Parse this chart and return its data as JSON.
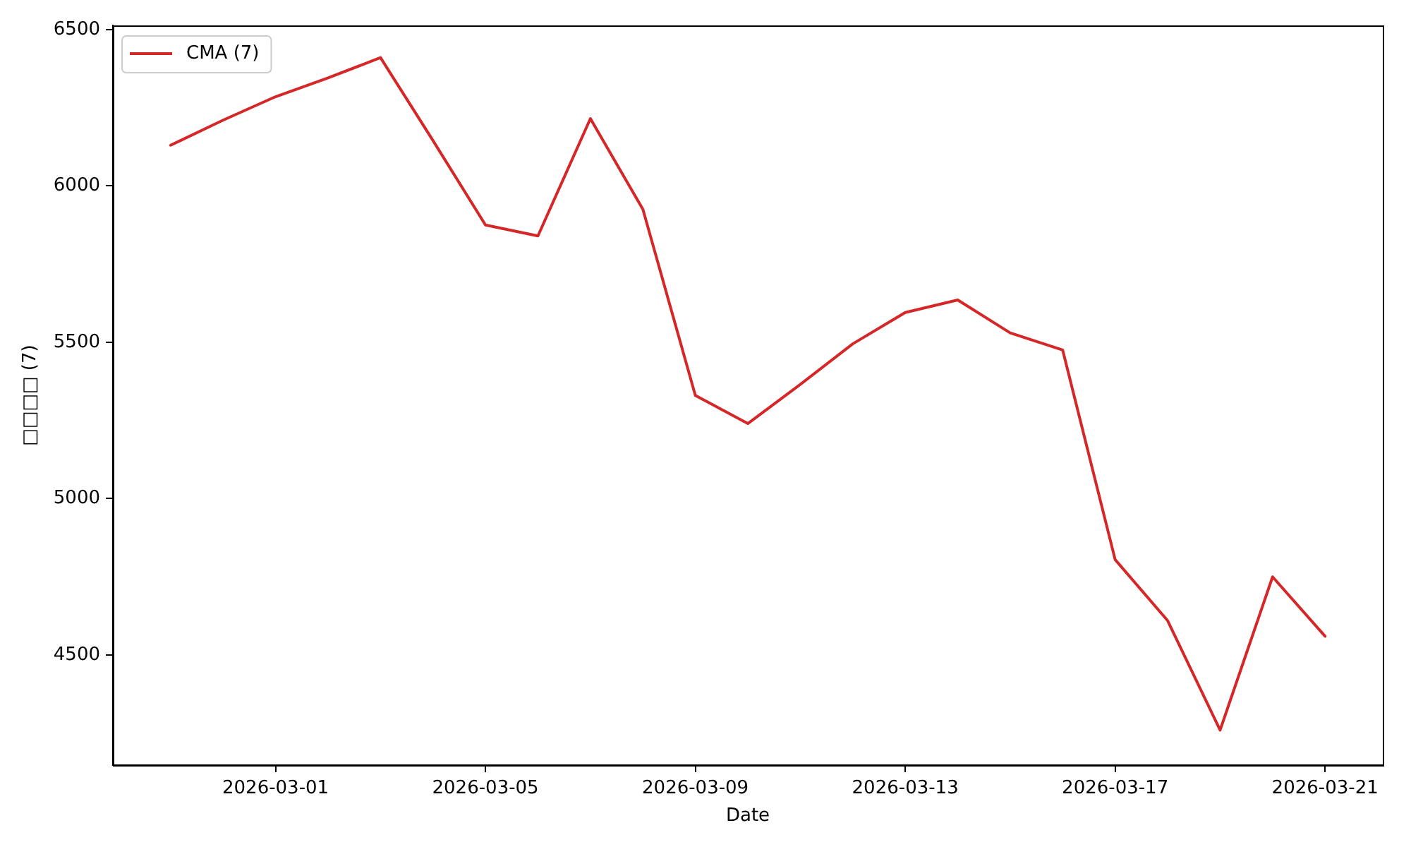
{
  "chart_data": {
    "type": "line",
    "xlabel": "Date",
    "ylabel": "□□□□ (7)",
    "x": [
      "2026-02-27",
      "2026-02-28",
      "2026-03-01",
      "2026-03-02",
      "2026-03-03",
      "2026-03-04",
      "2026-03-05",
      "2026-03-06",
      "2026-03-07",
      "2026-03-08",
      "2026-03-09",
      "2026-03-10",
      "2026-03-11",
      "2026-03-12",
      "2026-03-13",
      "2026-03-14",
      "2026-03-15",
      "2026-03-16",
      "2026-03-17",
      "2026-03-18",
      "2026-03-19",
      "2026-03-20",
      "2026-03-21"
    ],
    "series": [
      {
        "name": "CMA (7)",
        "color": "#d62728",
        "values": [
          6130,
          6210,
          6285,
          6345,
          6410,
          6145,
          5875,
          5840,
          6215,
          5925,
          5330,
          5240,
          5365,
          5495,
          5595,
          5635,
          5530,
          5475,
          4805,
          4610,
          4260,
          4750,
          4560
        ]
      }
    ],
    "xlim": [
      "2026-02-25T21:36",
      "2026-03-22T02:24"
    ],
    "xticks": [
      "2026-03-01",
      "2026-03-05",
      "2026-03-09",
      "2026-03-13",
      "2026-03-17",
      "2026-03-21"
    ],
    "ylim": [
      4148,
      6513
    ],
    "yticks": [
      4500,
      5000,
      5500,
      6000,
      6500
    ],
    "legend": "top left"
  }
}
